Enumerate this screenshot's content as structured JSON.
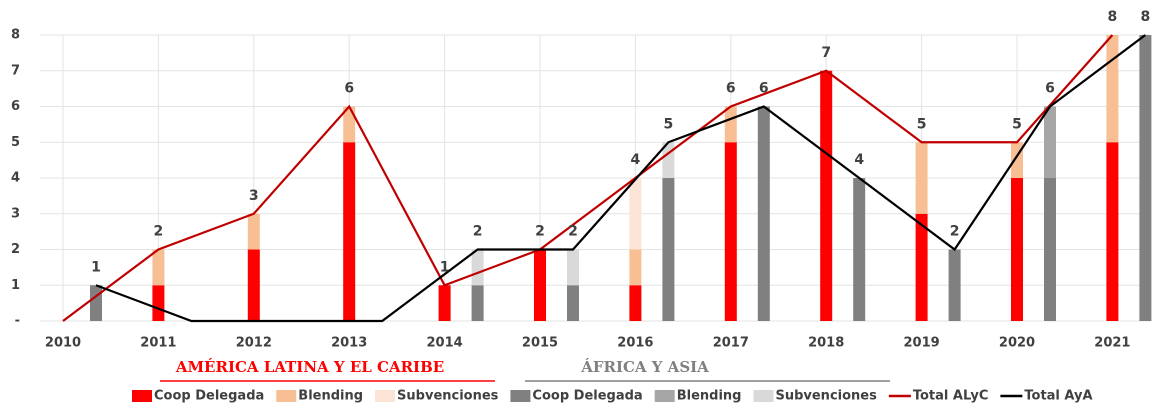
{
  "chart_data": {
    "type": "bar",
    "categories": [
      "2010",
      "2011",
      "2012",
      "2013",
      "2014",
      "2015",
      "2016",
      "2017",
      "2018",
      "2019",
      "2020",
      "2021"
    ],
    "ylim": [
      0,
      8
    ],
    "yticks": [
      {
        "value": 0,
        "label": "-"
      },
      1,
      2,
      3,
      4,
      5,
      6,
      7,
      8
    ],
    "grid": true,
    "groups": [
      {
        "name": "AMÉRICA LATINA Y EL CARIBE",
        "color": "#ff0000",
        "series": [
          {
            "name": "Coop Delegada",
            "color": "#ff0000",
            "values": [
              0,
              1,
              2,
              5,
              1,
              2,
              1,
              5,
              7,
              3,
              4,
              5
            ]
          },
          {
            "name": "Blending",
            "color": "#f9bf94",
            "values": [
              0,
              1,
              1,
              1,
              0,
              0,
              1,
              1,
              0,
              2,
              1,
              3
            ]
          },
          {
            "name": "Subvenciones",
            "color": "#fce4d6",
            "values": [
              0,
              0,
              0,
              0,
              0,
              0,
              2,
              0,
              0,
              0,
              0,
              0
            ]
          }
        ],
        "total": {
          "name": "Total ALyC",
          "color": "#c00000",
          "values": [
            0,
            2,
            3,
            6,
            1,
            2,
            4,
            6,
            7,
            5,
            5,
            8
          ]
        }
      },
      {
        "name": "ÁFRICA Y ASIA",
        "color": "#808080",
        "series": [
          {
            "name": "Coop Delegada",
            "color": "#808080",
            "values": [
              1,
              0,
              0,
              0,
              1,
              1,
              4,
              6,
              4,
              2,
              4,
              8
            ]
          },
          {
            "name": "Blending",
            "color": "#a6a6a6",
            "values": [
              0,
              0,
              0,
              0,
              0,
              0,
              0,
              0,
              0,
              0,
              2,
              0
            ]
          },
          {
            "name": "Subvenciones",
            "color": "#d9d9d9",
            "values": [
              0,
              0,
              0,
              0,
              1,
              1,
              1,
              0,
              0,
              0,
              0,
              0
            ]
          }
        ],
        "total": {
          "name": "Total AyA",
          "color": "#000000",
          "values": [
            1,
            0,
            0,
            0,
            2,
            2,
            5,
            6,
            4,
            2,
            6,
            8
          ]
        }
      }
    ]
  }
}
